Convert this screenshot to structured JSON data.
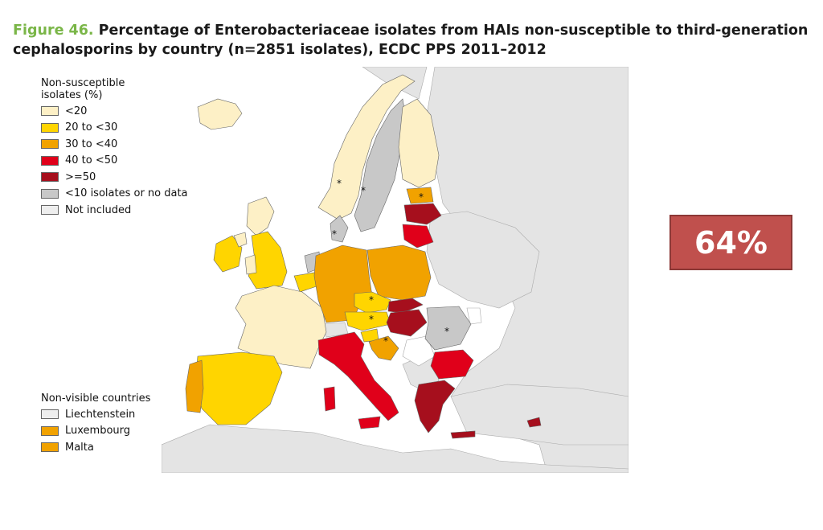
{
  "title": {
    "figure": "Figure 46.",
    "text": "Percentage of Enterobacteriaceae isolates from HAIs non-susceptible to third-generation cephalosporins by country (n=2851 isolates), ECDC PPS 2011–2012"
  },
  "legend": {
    "heading_line1": "Non-susceptible",
    "heading_line2": "isolates (%)",
    "items": [
      {
        "label": "<20",
        "color": "#fdf0c6"
      },
      {
        "label": "20 to <30",
        "color": "#ffd500"
      },
      {
        "label": "30 to <40",
        "color": "#f1a200"
      },
      {
        "label": "40 to <50",
        "color": "#e0001a"
      },
      {
        "label": ">=50",
        "color": "#a60f1d"
      },
      {
        "label": "<10 isolates or no data",
        "color": "#c8c8c8"
      },
      {
        "label": "Not included",
        "color": "#eeeeee"
      }
    ]
  },
  "nonvisible": {
    "heading": "Non-visible countries",
    "items": [
      {
        "label": "Liechtenstein",
        "color": "#eeeeee"
      },
      {
        "label": "Luxembourg",
        "color": "#f1a200"
      },
      {
        "label": "Malta",
        "color": "#f1a200"
      }
    ]
  },
  "map": {
    "sea_color": "#ffffff",
    "non_eu_color": "#e4e4e4",
    "marker": "*"
  },
  "badge": {
    "value": "64%",
    "color": "#c0504d"
  }
}
